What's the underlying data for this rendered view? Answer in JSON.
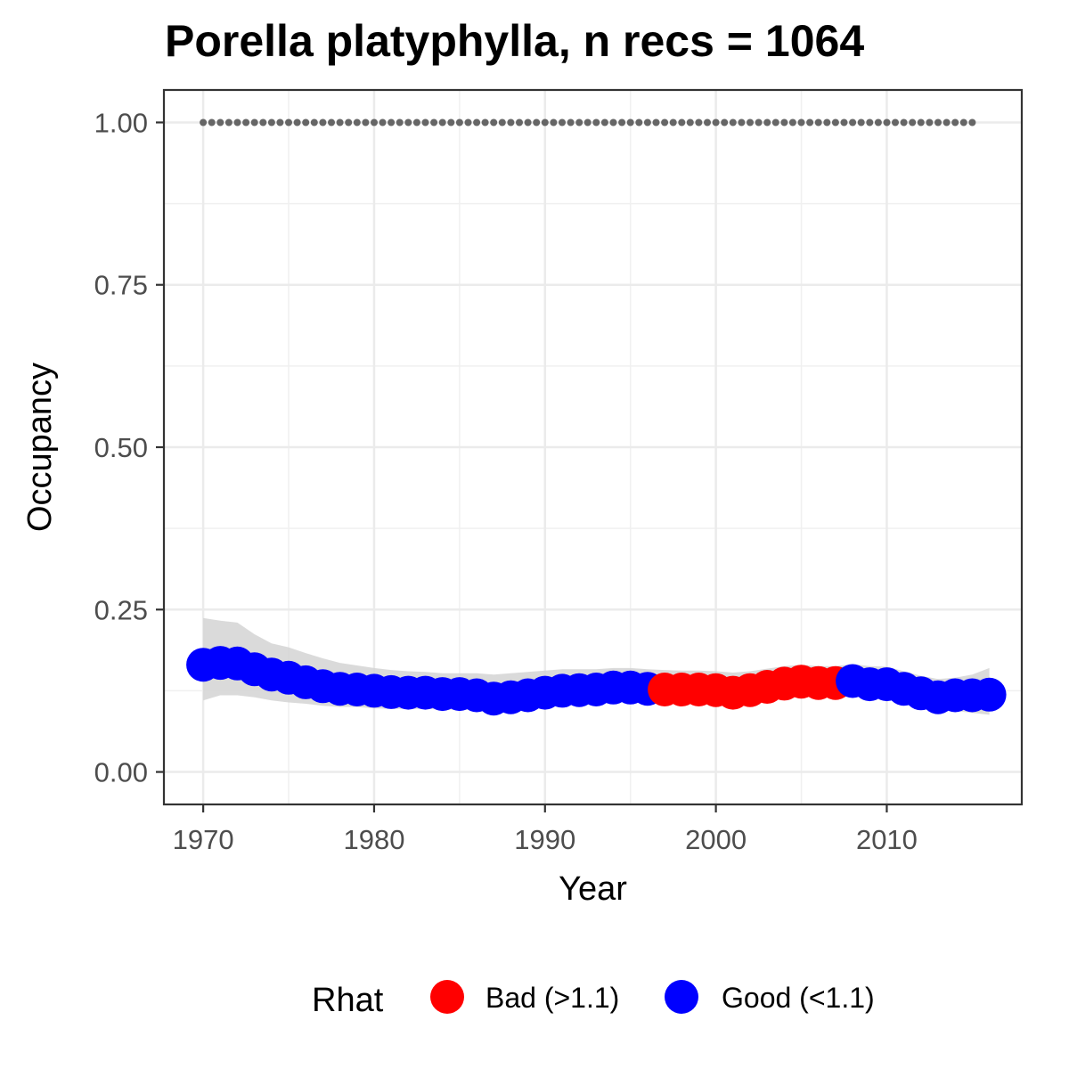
{
  "chart_data": {
    "type": "scatter",
    "title": "Porella platyphylla, n recs = 1064",
    "xlabel": "Year",
    "ylabel": "Occupancy",
    "xlim": [
      1967.7,
      2017.9
    ],
    "ylim": [
      -0.05,
      1.05
    ],
    "x_ticks": [
      1970,
      1980,
      1990,
      2000,
      2010
    ],
    "y_ticks": [
      0.0,
      0.25,
      0.5,
      0.75,
      1.0
    ],
    "y_tick_labels": [
      "0.00",
      "0.25",
      "0.50",
      "0.75",
      "1.00"
    ],
    "grid": true,
    "legend": {
      "position": "bottom",
      "title": "Rhat",
      "items": [
        {
          "key": "bad",
          "label": "Bad (>1.1)",
          "color": "#ff0000"
        },
        {
          "key": "good",
          "label": "Good (<1.1)",
          "color": "#0000ff"
        }
      ]
    },
    "colors": {
      "bad": "#ff0000",
      "good": "#0000ff",
      "ribbon": "#d3d3d3",
      "reference_line": "#666666"
    },
    "reference_line": {
      "y": 1.0,
      "x_start": 1970,
      "x_end": 2015,
      "style": "dotted"
    },
    "series": [
      {
        "name": "Occupancy",
        "x": [
          1970,
          1971,
          1972,
          1973,
          1974,
          1975,
          1976,
          1977,
          1978,
          1979,
          1980,
          1981,
          1982,
          1983,
          1984,
          1985,
          1986,
          1987,
          1988,
          1989,
          1990,
          1991,
          1992,
          1993,
          1994,
          1995,
          1996,
          1997,
          1998,
          1999,
          2000,
          2001,
          2002,
          2003,
          2004,
          2005,
          2006,
          2007,
          2008,
          2009,
          2010,
          2011,
          2012,
          2013,
          2014,
          2015,
          2016
        ],
        "y": [
          0.165,
          0.168,
          0.167,
          0.158,
          0.15,
          0.145,
          0.138,
          0.132,
          0.128,
          0.127,
          0.125,
          0.123,
          0.122,
          0.122,
          0.12,
          0.12,
          0.118,
          0.113,
          0.115,
          0.118,
          0.122,
          0.125,
          0.126,
          0.127,
          0.13,
          0.13,
          0.128,
          0.127,
          0.127,
          0.127,
          0.126,
          0.122,
          0.126,
          0.131,
          0.136,
          0.139,
          0.137,
          0.137,
          0.14,
          0.135,
          0.135,
          0.128,
          0.121,
          0.115,
          0.118,
          0.118,
          0.119
        ],
        "rhat": [
          "good",
          "good",
          "good",
          "good",
          "good",
          "good",
          "good",
          "good",
          "good",
          "good",
          "good",
          "good",
          "good",
          "good",
          "good",
          "good",
          "good",
          "good",
          "good",
          "good",
          "good",
          "good",
          "good",
          "good",
          "good",
          "good",
          "good",
          "bad",
          "bad",
          "bad",
          "bad",
          "bad",
          "bad",
          "bad",
          "bad",
          "bad",
          "bad",
          "bad",
          "good",
          "good",
          "good",
          "good",
          "good",
          "good",
          "good",
          "good",
          "good"
        ],
        "lower": [
          0.11,
          0.118,
          0.118,
          0.115,
          0.11,
          0.107,
          0.105,
          0.102,
          0.1,
          0.1,
          0.098,
          0.097,
          0.097,
          0.097,
          0.096,
          0.096,
          0.096,
          0.095,
          0.096,
          0.098,
          0.1,
          0.103,
          0.104,
          0.105,
          0.107,
          0.108,
          0.108,
          0.108,
          0.108,
          0.108,
          0.107,
          0.106,
          0.107,
          0.11,
          0.114,
          0.117,
          0.117,
          0.117,
          0.116,
          0.114,
          0.113,
          0.108,
          0.102,
          0.096,
          0.094,
          0.091,
          0.088
        ],
        "upper": [
          0.237,
          0.233,
          0.23,
          0.212,
          0.198,
          0.192,
          0.183,
          0.175,
          0.168,
          0.164,
          0.16,
          0.157,
          0.155,
          0.154,
          0.152,
          0.152,
          0.152,
          0.15,
          0.152,
          0.154,
          0.156,
          0.158,
          0.158,
          0.158,
          0.16,
          0.16,
          0.158,
          0.157,
          0.156,
          0.156,
          0.155,
          0.153,
          0.155,
          0.159,
          0.163,
          0.165,
          0.163,
          0.163,
          0.166,
          0.163,
          0.162,
          0.155,
          0.148,
          0.143,
          0.145,
          0.15,
          0.16
        ]
      }
    ]
  }
}
